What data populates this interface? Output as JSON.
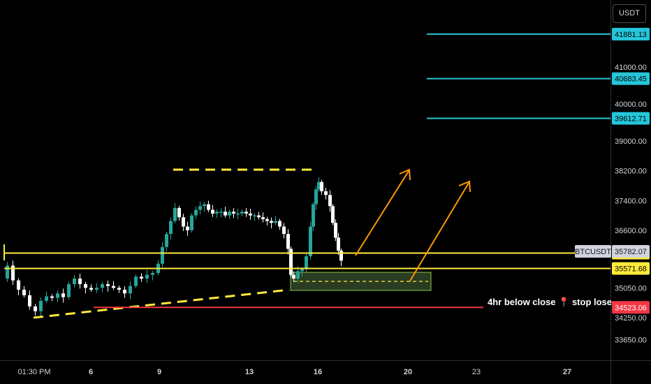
{
  "chart_data": {
    "type": "candlestick",
    "symbol": "BTCUSDT",
    "currency": "USDT",
    "last_price": 35782.07,
    "y_axis": {
      "ticks": [
        41000.0,
        40000.0,
        39000.0,
        38200.0,
        37400.0,
        36600.0,
        35050.0,
        34250.0,
        33650.0
      ],
      "range": [
        33100,
        42800
      ]
    },
    "x_axis": {
      "ticks": [
        {
          "label": "01:30 PM",
          "bold": false
        },
        {
          "label": "6",
          "bold": true
        },
        {
          "label": "9",
          "bold": true
        },
        {
          "label": "13",
          "bold": true
        },
        {
          "label": "16",
          "bold": true
        },
        {
          "label": "20",
          "bold": true
        },
        {
          "label": "23",
          "bold": false
        },
        {
          "label": "27",
          "bold": true
        }
      ]
    },
    "levels": [
      {
        "name": "target-3",
        "price": 41881.13,
        "label": "41881.13",
        "color": "#26c6da"
      },
      {
        "name": "target-2",
        "price": 40683.45,
        "label": "40683.45",
        "color": "#26c6da"
      },
      {
        "name": "target-1",
        "price": 39612.71,
        "label": "39612.71",
        "color": "#26c6da"
      },
      {
        "name": "resistance",
        "price": 35984.99,
        "label": "35984.99",
        "color": "#ffeb3b"
      },
      {
        "name": "support",
        "price": 35571.68,
        "label": "35571.68",
        "color": "#ffeb3b"
      },
      {
        "name": "stop-loss",
        "price": 34523.06,
        "label": "34523.06",
        "color": "#f23645"
      }
    ],
    "annotation": "4hr below close 📍 stop lose",
    "colors": {
      "up": "#26a69a",
      "down": "#ffffff",
      "background": "#000000",
      "level_cyan": "#26c6da",
      "level_yellow": "#ffeb3b",
      "stop_red": "#f23645",
      "arrow": "#ff9800"
    }
  }
}
